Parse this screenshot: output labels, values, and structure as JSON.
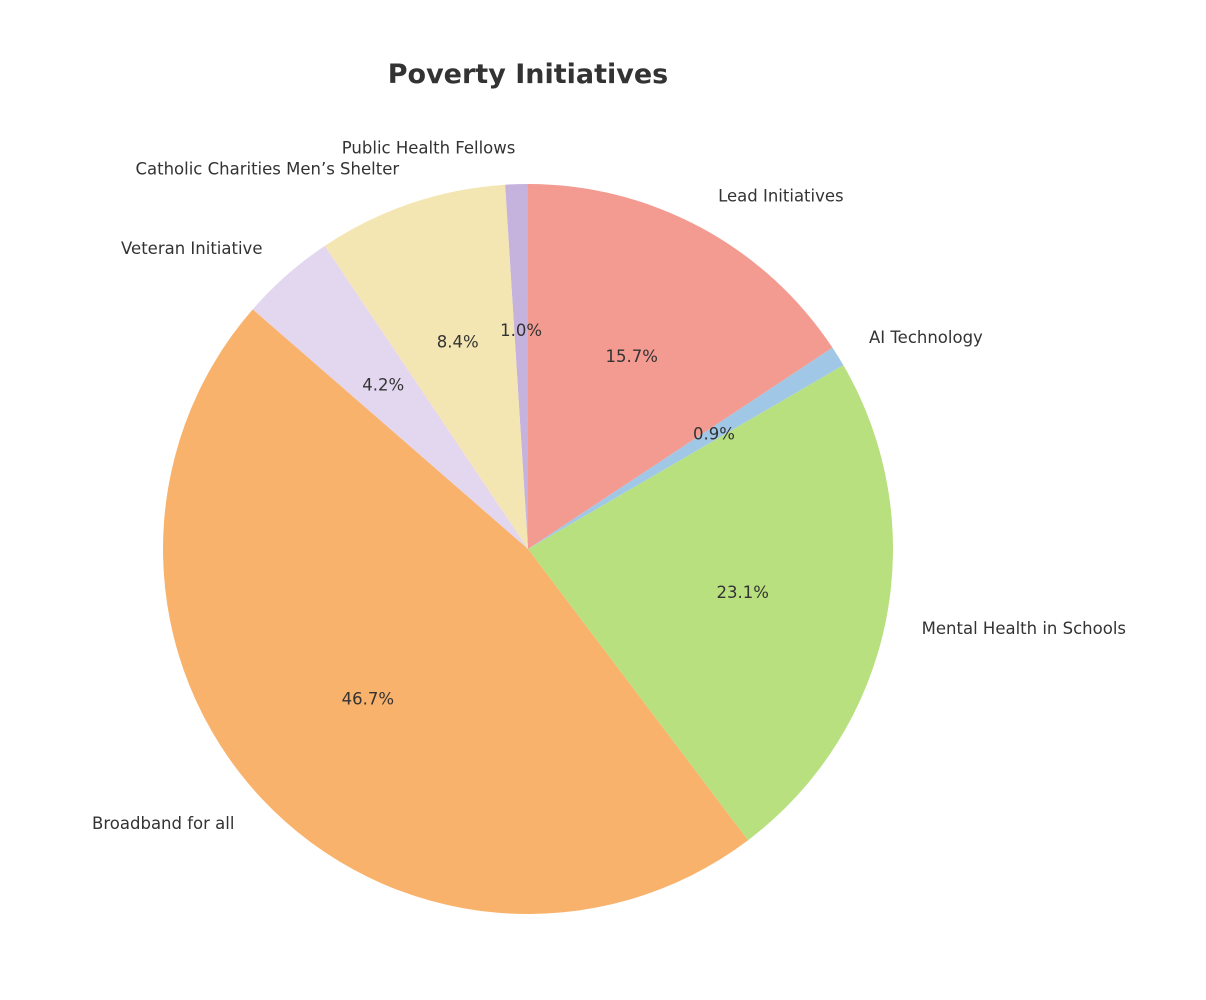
{
  "chart_data": {
    "type": "pie",
    "title": "Poverty Initiatives",
    "xlabel": "",
    "ylabel": "",
    "legend": false,
    "start_angle_deg": 90,
    "direction": "counterclockwise",
    "categories": [
      "Public Health Fellows",
      "Catholic Charities Men’s Shelter",
      "Veteran Initiative",
      "Broadband for all",
      "Mental Health in Schools",
      "AI Technology",
      "Lead Initiatives"
    ],
    "values": [
      1.0,
      8.4,
      4.2,
      46.7,
      23.1,
      0.9,
      15.7
    ],
    "value_labels": [
      "1.0%",
      "8.4%",
      "4.2%",
      "46.7%",
      "23.1%",
      "0.9%",
      "15.7%"
    ],
    "colors": [
      "#c5b3dd",
      "#f3e6b2",
      "#e3d7f0",
      "#f9b26b",
      "#b8e07f",
      "#a0c8e6",
      "#f39a91"
    ]
  }
}
